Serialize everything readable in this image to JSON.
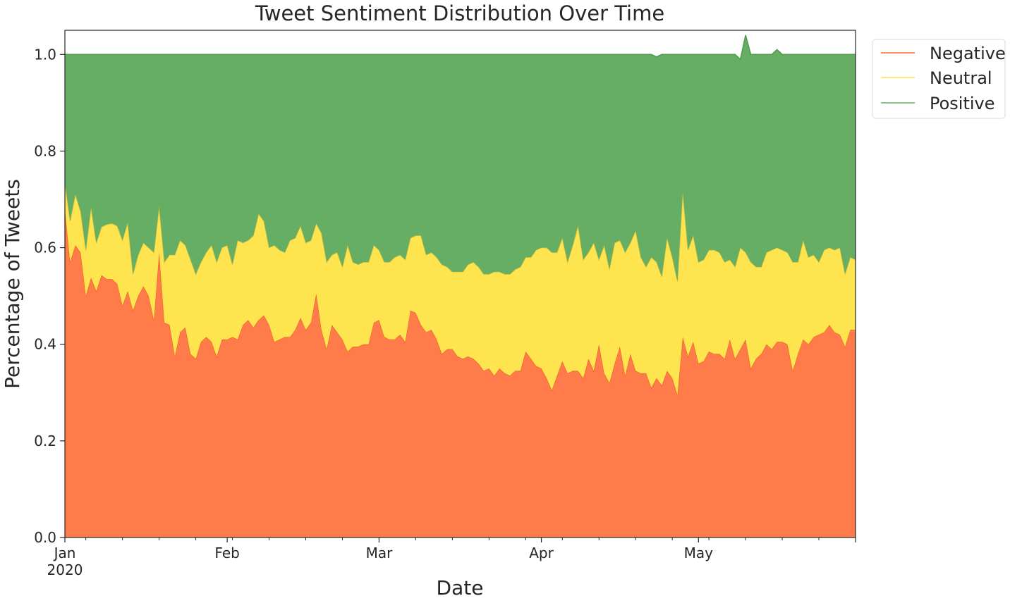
{
  "chart_data": {
    "type": "area",
    "stacked": true,
    "normalized": true,
    "title": "Tweet Sentiment Distribution Over Time",
    "xlabel": "Date",
    "ylabel": "Percentage of Tweets",
    "ylim": [
      0,
      1.05
    ],
    "xlim": [
      "2020-01-01",
      "2020-05-31"
    ],
    "grid": false,
    "legend_position": "upper-right-outside",
    "x_ticks": [
      {
        "date": "2020-01-01",
        "label": "Jan",
        "sublabel": "2020"
      },
      {
        "date": "2020-02-01",
        "label": "Feb",
        "sublabel": ""
      },
      {
        "date": "2020-03-01",
        "label": "Mar",
        "sublabel": ""
      },
      {
        "date": "2020-04-01",
        "label": "Apr",
        "sublabel": ""
      },
      {
        "date": "2020-05-01",
        "label": "May",
        "sublabel": ""
      }
    ],
    "y_ticks": [
      {
        "value": 0.0,
        "label": "0.0"
      },
      {
        "value": 0.2,
        "label": "0.2"
      },
      {
        "value": 0.4,
        "label": "0.4"
      },
      {
        "value": 0.6,
        "label": "0.6"
      },
      {
        "value": 0.8,
        "label": "0.8"
      },
      {
        "value": 1.0,
        "label": "1.0"
      }
    ],
    "x_start": "2020-01-01",
    "x_end": "2020-05-31",
    "series": [
      {
        "name": "Negative",
        "fill": "#ff7b4a",
        "line": "#f0662c",
        "legend_line": "#f4935f",
        "values": [
          0.68,
          0.57,
          0.605,
          0.59,
          0.5,
          0.538,
          0.51,
          0.543,
          0.535,
          0.535,
          0.525,
          0.48,
          0.51,
          0.47,
          0.5,
          0.52,
          0.5,
          0.45,
          0.59,
          0.445,
          0.44,
          0.375,
          0.425,
          0.435,
          0.38,
          0.37,
          0.405,
          0.415,
          0.405,
          0.375,
          0.41,
          0.41,
          0.415,
          0.41,
          0.44,
          0.45,
          0.435,
          0.45,
          0.46,
          0.44,
          0.405,
          0.41,
          0.415,
          0.415,
          0.43,
          0.455,
          0.43,
          0.445,
          0.505,
          0.43,
          0.39,
          0.44,
          0.425,
          0.41,
          0.385,
          0.395,
          0.395,
          0.4,
          0.4,
          0.445,
          0.45,
          0.415,
          0.41,
          0.41,
          0.42,
          0.405,
          0.47,
          0.465,
          0.44,
          0.425,
          0.43,
          0.41,
          0.38,
          0.39,
          0.39,
          0.375,
          0.37,
          0.375,
          0.37,
          0.36,
          0.345,
          0.35,
          0.335,
          0.35,
          0.34,
          0.335,
          0.345,
          0.345,
          0.385,
          0.37,
          0.355,
          0.35,
          0.33,
          0.305,
          0.335,
          0.365,
          0.34,
          0.345,
          0.345,
          0.33,
          0.37,
          0.345,
          0.4,
          0.34,
          0.32,
          0.36,
          0.395,
          0.335,
          0.38,
          0.345,
          0.34,
          0.34,
          0.31,
          0.33,
          0.315,
          0.345,
          0.33,
          0.295,
          0.415,
          0.375,
          0.405,
          0.36,
          0.365,
          0.385,
          0.38,
          0.38,
          0.37,
          0.41,
          0.37,
          0.39,
          0.41,
          0.35,
          0.37,
          0.38,
          0.4,
          0.39,
          0.405,
          0.405,
          0.4,
          0.345,
          0.38,
          0.41,
          0.4,
          0.415,
          0.42,
          0.425,
          0.44,
          0.425,
          0.42,
          0.395,
          0.43,
          0.43
        ]
      },
      {
        "name": "Neutral",
        "fill": "#fee44f",
        "line": "#e9c83c",
        "legend_line": "#fee87a",
        "values": [
          0.055,
          0.085,
          0.105,
          0.085,
          0.095,
          0.145,
          0.1,
          0.1,
          0.113,
          0.115,
          0.12,
          0.135,
          0.142,
          0.075,
          0.085,
          0.09,
          0.1,
          0.14,
          0.095,
          0.125,
          0.145,
          0.21,
          0.19,
          0.17,
          0.195,
          0.175,
          0.165,
          0.175,
          0.2,
          0.195,
          0.19,
          0.195,
          0.15,
          0.205,
          0.17,
          0.165,
          0.19,
          0.22,
          0.195,
          0.16,
          0.2,
          0.185,
          0.175,
          0.2,
          0.19,
          0.19,
          0.18,
          0.17,
          0.145,
          0.2,
          0.18,
          0.145,
          0.165,
          0.15,
          0.22,
          0.175,
          0.17,
          0.17,
          0.17,
          0.16,
          0.145,
          0.155,
          0.16,
          0.17,
          0.165,
          0.17,
          0.15,
          0.16,
          0.185,
          0.16,
          0.16,
          0.17,
          0.185,
          0.17,
          0.16,
          0.175,
          0.18,
          0.19,
          0.2,
          0.2,
          0.2,
          0.195,
          0.215,
          0.2,
          0.205,
          0.21,
          0.21,
          0.215,
          0.195,
          0.21,
          0.24,
          0.25,
          0.27,
          0.285,
          0.255,
          0.255,
          0.23,
          0.26,
          0.3,
          0.245,
          0.22,
          0.265,
          0.175,
          0.265,
          0.235,
          0.25,
          0.22,
          0.255,
          0.23,
          0.29,
          0.24,
          0.22,
          0.27,
          0.24,
          0.225,
          0.275,
          0.25,
          0.235,
          0.3,
          0.22,
          0.22,
          0.21,
          0.21,
          0.21,
          0.215,
          0.21,
          0.2,
          0.165,
          0.19,
          0.21,
          0.18,
          0.22,
          0.19,
          0.18,
          0.19,
          0.205,
          0.195,
          0.19,
          0.19,
          0.225,
          0.19,
          0.205,
          0.18,
          0.17,
          0.15,
          0.17,
          0.16,
          0.17,
          0.18,
          0.15,
          0.15,
          0.145
        ]
      },
      {
        "name": "Positive",
        "fill": "#65ae64",
        "line": "#4f9a4f",
        "legend_line": "#8cc28a",
        "values": [
          0.265,
          0.345,
          0.29,
          0.325,
          0.405,
          0.317,
          0.39,
          0.357,
          0.352,
          0.35,
          0.355,
          0.385,
          0.348,
          0.455,
          0.415,
          0.39,
          0.4,
          0.41,
          0.315,
          0.43,
          0.415,
          0.415,
          0.385,
          0.395,
          0.425,
          0.455,
          0.43,
          0.41,
          0.395,
          0.43,
          0.4,
          0.395,
          0.435,
          0.385,
          0.39,
          0.385,
          0.375,
          0.33,
          0.345,
          0.4,
          0.395,
          0.405,
          0.41,
          0.385,
          0.38,
          0.355,
          0.39,
          0.385,
          0.35,
          0.37,
          0.43,
          0.415,
          0.41,
          0.44,
          0.395,
          0.43,
          0.435,
          0.43,
          0.43,
          0.395,
          0.405,
          0.43,
          0.43,
          0.42,
          0.415,
          0.425,
          0.38,
          0.375,
          0.375,
          0.415,
          0.41,
          0.42,
          0.435,
          0.44,
          0.45,
          0.45,
          0.45,
          0.435,
          0.43,
          0.44,
          0.455,
          0.455,
          0.45,
          0.45,
          0.455,
          0.455,
          0.445,
          0.44,
          0.42,
          0.42,
          0.405,
          0.4,
          0.4,
          0.41,
          0.41,
          0.38,
          0.43,
          0.395,
          0.355,
          0.425,
          0.41,
          0.39,
          0.425,
          0.395,
          0.445,
          0.39,
          0.385,
          0.41,
          0.39,
          0.365,
          0.42,
          0.44,
          0.42,
          0.425,
          0.46,
          0.38,
          0.42,
          0.47,
          0.285,
          0.405,
          0.375,
          0.43,
          0.425,
          0.405,
          0.405,
          0.41,
          0.43,
          0.425,
          0.44,
          0.39,
          0.45,
          0.43,
          0.44,
          0.44,
          0.41,
          0.405,
          0.41,
          0.405,
          0.41,
          0.43,
          0.43,
          0.385,
          0.42,
          0.415,
          0.43,
          0.405,
          0.4,
          0.405,
          0.4,
          0.455,
          0.42,
          0.425
        ]
      }
    ]
  }
}
